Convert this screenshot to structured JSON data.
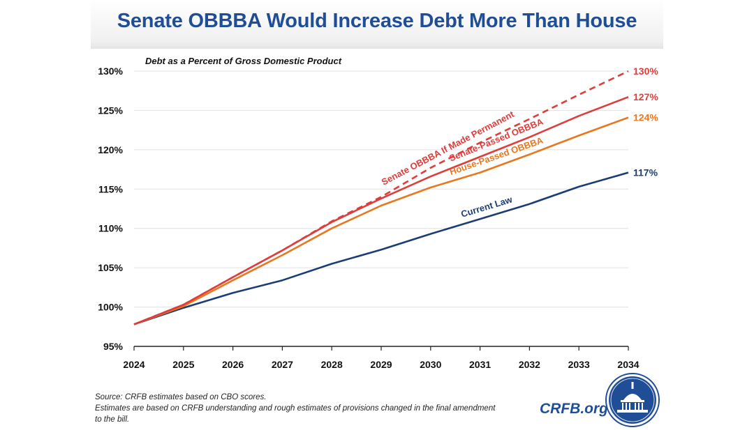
{
  "title": "Senate OBBBA Would Increase Debt More Than House",
  "footer": {
    "source_line": "Source: CRFB estimates based on CBO scores.",
    "note_line": "Estimates are based on CRFB understanding and rough estimates of provisions changed in the final amendment to the bill.",
    "brand": "CRFB.org",
    "logo_icon": "capitol-seal-icon"
  },
  "chart_data": {
    "type": "line",
    "title": "Debt as a Percent of Gross Domestic Product",
    "xlabel": "",
    "ylabel": "",
    "x": [
      2024,
      2025,
      2026,
      2027,
      2028,
      2029,
      2030,
      2031,
      2032,
      2033,
      2034
    ],
    "xticks": [
      "2024",
      "2025",
      "2026",
      "2027",
      "2028",
      "2029",
      "2030",
      "2031",
      "2032",
      "2033",
      "2034"
    ],
    "ylim": [
      95,
      130
    ],
    "yticks": [
      "95%",
      "100%",
      "105%",
      "110%",
      "115%",
      "120%",
      "125%",
      "130%"
    ],
    "grid": true,
    "legend": "inline labels",
    "series": [
      {
        "name": "Current Law",
        "color": "#1a3e73",
        "dashed": false,
        "values": [
          97.8,
          99.9,
          101.8,
          103.4,
          105.5,
          107.3,
          109.3,
          111.2,
          113.1,
          115.3,
          117.1
        ],
        "end_label": "117%"
      },
      {
        "name": "House-Passed OBBBA",
        "color": "#e8771e",
        "dashed": false,
        "values": [
          97.8,
          100.1,
          103.4,
          106.6,
          110.0,
          112.9,
          115.2,
          117.1,
          119.4,
          121.8,
          124.1
        ],
        "end_label": "124%"
      },
      {
        "name": "Senate-Passed OBBBA",
        "color": "#dd3d3b",
        "dashed": false,
        "values": [
          97.8,
          100.3,
          103.8,
          107.2,
          110.8,
          113.8,
          116.6,
          119.1,
          121.6,
          124.3,
          126.7
        ],
        "end_label": "127%"
      },
      {
        "name": "Senate OBBBA If Made Permanent",
        "color": "#dd3d3b",
        "dashed": true,
        "values": [
          97.8,
          100.3,
          103.8,
          107.2,
          110.9,
          114.0,
          117.7,
          120.9,
          123.9,
          127.0,
          130.0
        ],
        "end_label": "130%"
      }
    ]
  }
}
